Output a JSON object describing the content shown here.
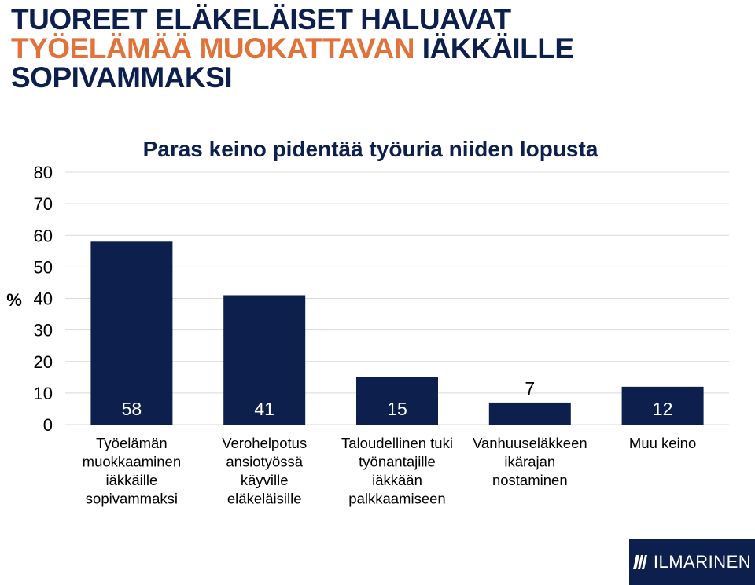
{
  "headline": {
    "line1": "TUOREET ELÄKELÄISET HALUAVAT",
    "line2_highlight": "TYÖELÄMÄÄ MUOKATTAVAN",
    "line2_rest": " IÄKKÄILLE",
    "line3": "SOPIVAMMAKSI"
  },
  "colors": {
    "navy": "#0d1f4d",
    "orange": "#e0723a",
    "gridline": "#d9d9d9"
  },
  "chart_data": {
    "type": "bar",
    "title": "Paras keino pidentää työuria niiden lopusta",
    "ylabel": "%",
    "ylim": [
      0,
      80
    ],
    "yticks": [
      0,
      10,
      20,
      30,
      40,
      50,
      60,
      70,
      80
    ],
    "grid": true,
    "categories": [
      [
        "Työelämän",
        "muokkaaminen",
        "iäkkäille",
        "sopivammaksi"
      ],
      [
        "Verohelpotus",
        "ansiotyössä",
        "käyville",
        "eläkeläisille"
      ],
      [
        "Taloudellinen tuki",
        "työnantajille",
        "iäkkään",
        "palkkaamiseen"
      ],
      [
        "Vanhuuseläkkeen",
        "ikärajan",
        "nostaminen"
      ],
      [
        "Muu keino"
      ]
    ],
    "values": [
      58,
      41,
      15,
      7,
      12
    ],
    "data_labels": [
      "58",
      "41",
      "15",
      "7",
      "12"
    ]
  },
  "logo": {
    "text": "ILMARINEN"
  }
}
